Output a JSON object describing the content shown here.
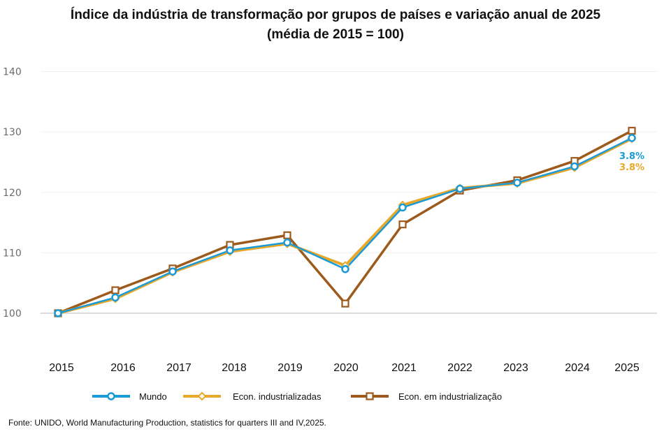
{
  "chart_data": {
    "type": "line",
    "title": "Índice da indústria de transformação por grupos de países e variação anual de 2025",
    "subtitle": "(média de 2015 = 100)",
    "xlabel": "",
    "ylabel": "",
    "x": [
      "2015",
      "2016",
      "2017",
      "2018",
      "2019",
      "2020",
      "2021",
      "2022",
      "2023",
      "2024",
      "2025"
    ],
    "ylim": [
      100,
      140
    ],
    "yticks": [
      100,
      110,
      120,
      130,
      140
    ],
    "grid": true,
    "legend_position": "bottom",
    "series": [
      {
        "name": "Mundo",
        "color": "#1a9ad6",
        "marker": "circle",
        "values": [
          100,
          102.6,
          106.9,
          110.4,
          111.7,
          107.3,
          117.5,
          120.6,
          121.6,
          124.3,
          129.0
        ]
      },
      {
        "name": "Econ. industrializadas",
        "color": "#e8a82a",
        "marker": "diamond",
        "values": [
          100,
          102.4,
          106.8,
          110.2,
          111.5,
          107.9,
          117.9,
          120.7,
          121.5,
          124.1,
          128.9
        ]
      },
      {
        "name": "Econ. em industrialização",
        "color": "#9c5a1c",
        "marker": "square",
        "values": [
          100,
          103.8,
          107.4,
          111.3,
          112.9,
          101.6,
          114.7,
          120.3,
          122.0,
          125.2,
          130.2
        ]
      }
    ],
    "annotations": [
      {
        "text": "3.8%",
        "series": "Mundo",
        "x": "2025",
        "color": "#1a9ad6"
      },
      {
        "text": "3.8%",
        "series": "Econ. industrializadas",
        "x": "2025",
        "color": "#e8a82a"
      }
    ]
  },
  "source": "Fonte: UNIDO, World Manufacturing Production, statistics for quarters III and IV,2025."
}
